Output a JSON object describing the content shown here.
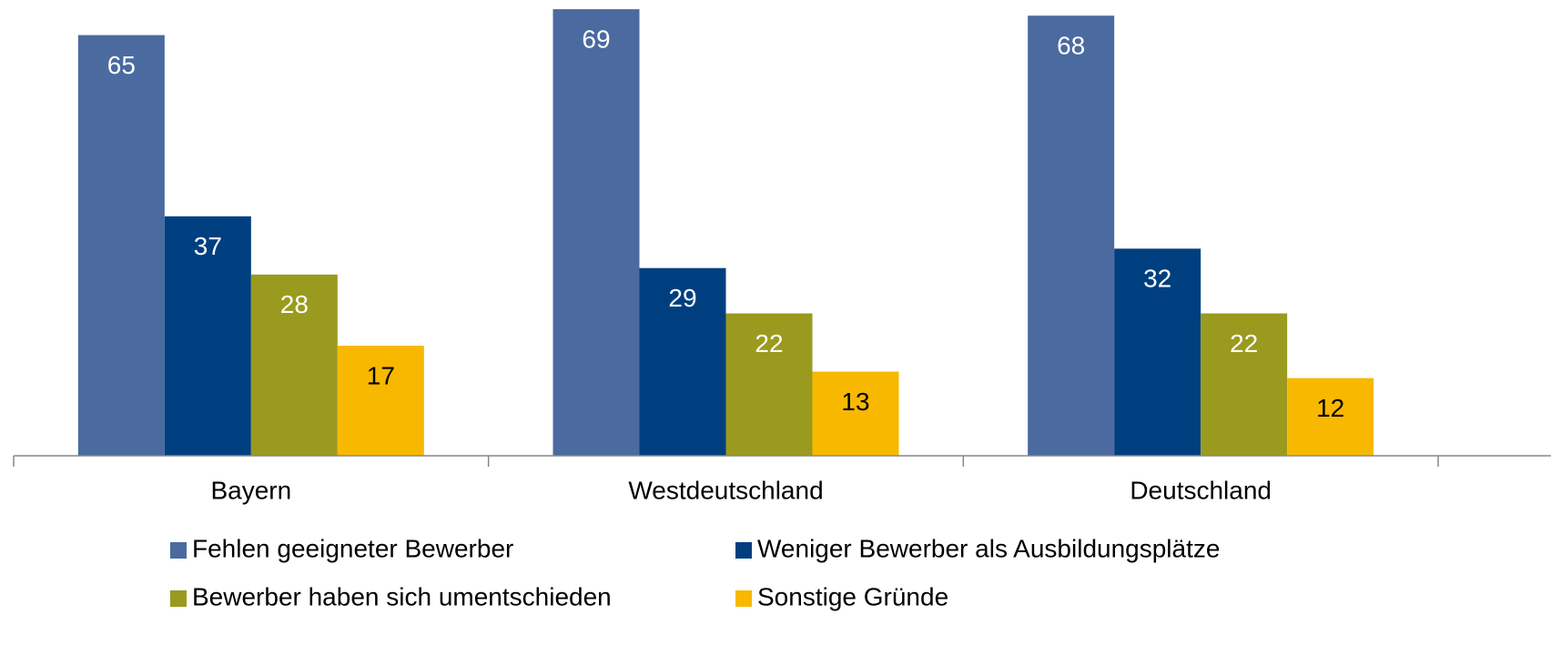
{
  "chart_data": {
    "type": "bar",
    "categories": [
      "Bayern",
      "Westdeutschland",
      "Deutschland"
    ],
    "series": [
      {
        "name": "Fehlen geeigneter Bewerber",
        "color": "#4a6aa0",
        "values": [
          65,
          69,
          68
        ]
      },
      {
        "name": "Weniger Bewerber als Ausbildungsplätze",
        "color": "#003f7f",
        "values": [
          37,
          29,
          32
        ]
      },
      {
        "name": "Bewerber haben sich umentschieden",
        "color": "#9a9a1e",
        "values": [
          28,
          22,
          22
        ]
      },
      {
        "name": "Sonstige Gründe",
        "color": "#f8b800",
        "values": [
          17,
          13,
          12
        ]
      }
    ],
    "ylim": [
      0,
      70
    ],
    "legend": "bottom"
  }
}
